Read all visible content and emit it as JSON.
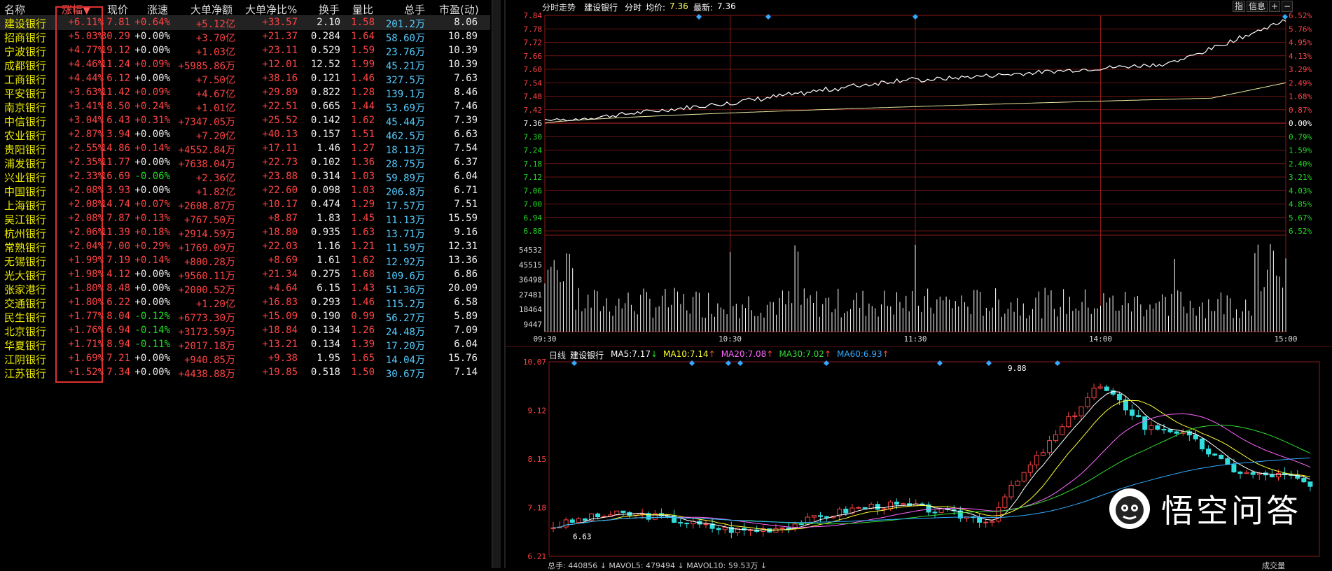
{
  "table": {
    "headers": [
      "名称",
      "涨幅▼",
      "现价",
      "涨速",
      "大单净额",
      "大单净比%",
      "换手",
      "量比",
      "总手",
      "市盈(动)"
    ],
    "rows": [
      [
        "建设银行",
        "+6.11%",
        "7.81",
        "+0.64%",
        "+5.12亿",
        "+33.57",
        "2.10",
        "1.58",
        "201.2万",
        "8.06"
      ],
      [
        "招商银行",
        "+5.03%",
        "30.29",
        "+0.00%",
        "+3.70亿",
        "+21.37",
        "0.284",
        "1.64",
        "58.60万",
        "10.89"
      ],
      [
        "宁波银行",
        "+4.77%",
        "19.12",
        "+0.00%",
        "+1.03亿",
        "+23.11",
        "0.529",
        "1.59",
        "23.76万",
        "10.39"
      ],
      [
        "成都银行",
        "+4.46%",
        "11.24",
        "+0.09%",
        "+5985.86万",
        "+12.01",
        "12.52",
        "1.99",
        "45.21万",
        "10.39"
      ],
      [
        "工商银行",
        "+4.44%",
        "6.12",
        "+0.00%",
        "+7.50亿",
        "+38.16",
        "0.121",
        "1.46",
        "327.5万",
        "7.63"
      ],
      [
        "平安银行",
        "+3.63%",
        "11.42",
        "+0.09%",
        "+4.67亿",
        "+29.89",
        "0.822",
        "1.28",
        "139.1万",
        "8.46"
      ],
      [
        "南京银行",
        "+3.41%",
        "8.50",
        "+0.24%",
        "+1.01亿",
        "+22.51",
        "0.665",
        "1.44",
        "53.69万",
        "7.46"
      ],
      [
        "中信银行",
        "+3.04%",
        "6.43",
        "+0.31%",
        "+7347.05万",
        "+25.52",
        "0.142",
        "1.62",
        "45.44万",
        "7.39"
      ],
      [
        "农业银行",
        "+2.87%",
        "3.94",
        "+0.00%",
        "+7.20亿",
        "+40.13",
        "0.157",
        "1.51",
        "462.5万",
        "6.63"
      ],
      [
        "贵阳银行",
        "+2.55%",
        "14.86",
        "+0.14%",
        "+4552.84万",
        "+17.11",
        "1.46",
        "1.27",
        "18.13万",
        "7.54"
      ],
      [
        "浦发银行",
        "+2.35%",
        "11.77",
        "+0.00%",
        "+7638.04万",
        "+22.73",
        "0.102",
        "1.36",
        "28.75万",
        "6.37"
      ],
      [
        "兴业银行",
        "+2.33%",
        "16.69",
        "-0.06%",
        "+2.36亿",
        "+23.88",
        "0.314",
        "1.03",
        "59.89万",
        "6.04"
      ],
      [
        "中国银行",
        "+2.08%",
        "3.93",
        "+0.00%",
        "+1.82亿",
        "+22.60",
        "0.098",
        "1.03",
        "206.8万",
        "6.71"
      ],
      [
        "上海银行",
        "+2.08%",
        "14.74",
        "+0.07%",
        "+2608.87万",
        "+10.17",
        "0.474",
        "1.29",
        "17.57万",
        "7.51"
      ],
      [
        "吴江银行",
        "+2.08%",
        "7.87",
        "+0.13%",
        "+767.50万",
        "+8.87",
        "1.83",
        "1.45",
        "11.13万",
        "15.59"
      ],
      [
        "杭州银行",
        "+2.06%",
        "11.39",
        "+0.18%",
        "+2914.59万",
        "+18.80",
        "0.935",
        "1.63",
        "13.71万",
        "9.16"
      ],
      [
        "常熟银行",
        "+2.04%",
        "7.00",
        "+0.29%",
        "+1769.09万",
        "+22.03",
        "1.16",
        "1.21",
        "11.59万",
        "12.31"
      ],
      [
        "无锡银行",
        "+1.99%",
        "7.19",
        "+0.14%",
        "+800.28万",
        "+8.69",
        "1.61",
        "1.62",
        "12.92万",
        "13.36"
      ],
      [
        "光大银行",
        "+1.98%",
        "4.12",
        "+0.00%",
        "+9560.11万",
        "+21.34",
        "0.275",
        "1.68",
        "109.6万",
        "6.86"
      ],
      [
        "张家港行",
        "+1.80%",
        "8.48",
        "+0.00%",
        "+2000.52万",
        "+4.64",
        "6.15",
        "1.43",
        "51.36万",
        "20.09"
      ],
      [
        "交通银行",
        "+1.80%",
        "6.22",
        "+0.00%",
        "+1.20亿",
        "+16.83",
        "0.293",
        "1.46",
        "115.2万",
        "6.58"
      ],
      [
        "民生银行",
        "+1.77%",
        "8.04",
        "-0.12%",
        "+6773.30万",
        "+15.09",
        "0.190",
        "0.99",
        "56.27万",
        "5.89"
      ],
      [
        "北京银行",
        "+1.76%",
        "6.94",
        "-0.14%",
        "+3173.59万",
        "+18.84",
        "0.134",
        "1.26",
        "24.48万",
        "7.09"
      ],
      [
        "华夏银行",
        "+1.71%",
        "8.94",
        "-0.11%",
        "+2017.18万",
        "+13.21",
        "0.134",
        "1.39",
        "17.20万",
        "6.04"
      ],
      [
        "江阴银行",
        "+1.69%",
        "7.21",
        "+0.00%",
        "+940.85万",
        "+9.38",
        "1.95",
        "1.65",
        "14.04万",
        "15.76"
      ],
      [
        "江苏银行",
        "+1.52%",
        "7.34",
        "+0.00%",
        "+4438.88万",
        "+19.85",
        "0.518",
        "1.50",
        "30.67万",
        "7.14"
      ]
    ]
  },
  "intraday": {
    "title": "分时走势",
    "stock": "建设银行",
    "mode": "分时",
    "avg_label": "均价:",
    "avg_value": "7.36",
    "last_label": "最新:",
    "last_value": "7.36",
    "btn_index": "指",
    "btn_info": "信息",
    "btn_plus": "+",
    "btn_minus": "−",
    "price_ticks": [
      "7.84",
      "7.78",
      "7.72",
      "7.66",
      "7.60",
      "7.54",
      "7.48",
      "7.42",
      "7.36",
      "7.30",
      "7.24",
      "7.18",
      "7.12",
      "7.06",
      "7.00",
      "6.94",
      "6.88"
    ],
    "pct_ticks": [
      "6.52%",
      "5.76%",
      "4.95%",
      "4.13%",
      "3.29%",
      "2.49%",
      "1.68%",
      "0.87%",
      "0.00%",
      "0.79%",
      "1.59%",
      "2.40%",
      "3.21%",
      "4.03%",
      "4.85%",
      "5.67%",
      "6.52%"
    ],
    "vol_ticks": [
      "54532",
      "45515",
      "36498",
      "27481",
      "18464",
      "9447"
    ],
    "time_ticks": [
      "09:30",
      "10:30",
      "11:30",
      "14:00",
      "15:00"
    ],
    "colors": {
      "price": "#ffffff",
      "avg": "#e8e8a0",
      "grid": "#8b1a1a",
      "up": "#ff4444",
      "down": "#22dd22",
      "vol": "#ffffff"
    }
  },
  "daily": {
    "period": "日线",
    "stock": "建设银行",
    "ma": [
      {
        "label": "MA5:",
        "value": "7.17",
        "arrow": "↓",
        "color": "#ffffff"
      },
      {
        "label": "MA10:",
        "value": "7.14",
        "arrow": "↑",
        "color": "#ffff33"
      },
      {
        "label": "MA20:",
        "value": "7.08",
        "arrow": "↑",
        "color": "#ff66ff"
      },
      {
        "label": "MA30:",
        "value": "7.02",
        "arrow": "↑",
        "color": "#33dd33"
      },
      {
        "label": "MA60:",
        "value": "6.93",
        "arrow": "↑",
        "color": "#33aaff"
      }
    ],
    "price_ticks": [
      "10.07",
      "9.12",
      "8.15",
      "7.18",
      "6.21"
    ],
    "high_label": "9.88",
    "low_label": "6.63",
    "bottom_line": "总手: 440856 ↓  MAVOL5: 479494 ↓  MAVOL10: 59.53万 ↓",
    "bottom_right": "成交量"
  },
  "watermark": {
    "logo_icon": "wukong-icon",
    "text": "悟空问答"
  }
}
